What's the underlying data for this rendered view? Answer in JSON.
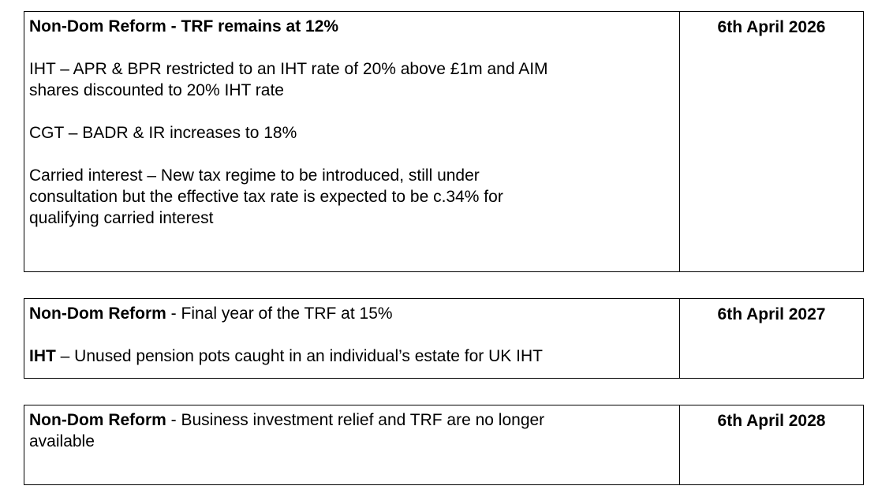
{
  "page": {
    "background": "#ffffff",
    "border_color": "#000000",
    "text_color": "#000000"
  },
  "tables": [
    {
      "date": "6th April 2026",
      "paragraphs": [
        {
          "bold": "Non-Dom Reform - TRF remains at 12%",
          "regular": ""
        },
        {
          "bold": "",
          "regular": "IHT – APR & BPR restricted to an IHT rate of 20% above £1m and AIM shares discounted to 20% IHT rate"
        },
        {
          "bold": "",
          "regular": "CGT – BADR & IR increases to 18%"
        },
        {
          "bold": "",
          "regular": "Carried interest – New tax regime to be introduced, still under consultation but the effective tax rate is expected to be c.34% for qualifying carried interest"
        }
      ]
    },
    {
      "date": "6th April 2027",
      "paragraphs": [
        {
          "bold": "Non-Dom Reform",
          "regular": " - Final year of the TRF at 15%"
        },
        {
          "bold": "IHT",
          "regular": " – Unused pension pots caught in an individual’s estate for UK IHT"
        }
      ]
    },
    {
      "date": "6th April 2028",
      "paragraphs": [
        {
          "bold": "Non-Dom Reform",
          "regular": " - Business investment relief and TRF are no longer available"
        }
      ]
    }
  ]
}
